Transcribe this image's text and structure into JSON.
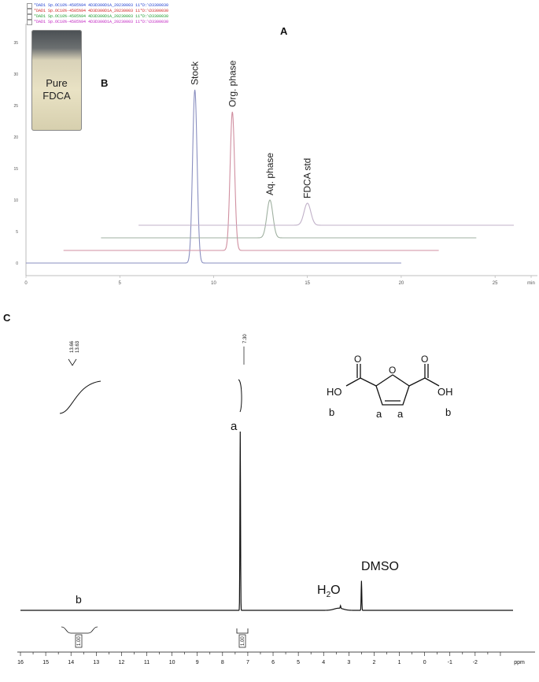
{
  "chart_data": [
    {
      "panel": "A",
      "type": "line",
      "panel_label": "A",
      "inset_label": "B",
      "inset_photo_text": [
        "Pure",
        "FDCA"
      ],
      "legend": [
        {
          "text": "*DAD1 Sp.OC10%-4505%94 4D3D300D1A_20230003 11*D:\\D3300030",
          "color": "#1f3fd0"
        },
        {
          "text": "*DAD1 Sp.OC10%-4505%94 4D3D300D1A_20230003 11*D:\\D3300030",
          "color": "#d02020"
        },
        {
          "text": "*DAD1 Sp.OC10%-4505%94 4D3D300D1A_20230003 11*D:\\D3300030",
          "color": "#1a9a2a"
        },
        {
          "text": "*DAD1 Sp.OC10%-4505%94 4D3D300D1A_20230003 11*D:\\D3300030",
          "color": "#c020c0"
        }
      ],
      "x_ticks": [
        "0",
        "5",
        "10",
        "15",
        "20",
        "25",
        "min"
      ],
      "y_ticks": [
        "0",
        "5",
        "10",
        "15",
        "20",
        "25",
        "30",
        "35"
      ],
      "series": [
        {
          "name": "Stock",
          "color": "#8a8fc0",
          "offset": 0,
          "x_start": 0,
          "x_end": 20,
          "peak_x": 9.0,
          "peak_y": 27.5,
          "sigma": 0.12
        },
        {
          "name": "Org. phase",
          "color": "#d08fa0",
          "offset": 2,
          "x_start": 2,
          "x_end": 22,
          "peak_x": 11.0,
          "peak_y": 22,
          "sigma": 0.12
        },
        {
          "name": "Aq. phase",
          "color": "#9fb0a0",
          "offset": 4,
          "x_start": 4,
          "x_end": 24,
          "peak_x": 13.0,
          "peak_y": 6,
          "sigma": 0.16
        },
        {
          "name": "FDCA std",
          "color": "#c0b0c8",
          "offset": 6,
          "x_start": 6,
          "x_end": 26,
          "peak_x": 15.0,
          "peak_y": 3.5,
          "sigma": 0.18
        }
      ],
      "xlim": [
        0,
        26
      ],
      "ylim": [
        0,
        38
      ]
    },
    {
      "panel": "C",
      "type": "line",
      "panel_label": "C",
      "x_ticks": [
        "16",
        "15",
        "14",
        "13",
        "12",
        "11",
        "10",
        "9",
        "8",
        "7",
        "6",
        "5",
        "4",
        "3",
        "2",
        "1",
        "0",
        "-1",
        "-2",
        "ppm"
      ],
      "xlim": [
        16,
        -3.5
      ],
      "peaks": [
        {
          "label": "a",
          "ppm": 7.3,
          "height": 1.0
        },
        {
          "label": "DMSO",
          "ppm": 2.5,
          "height": 0.165
        },
        {
          "label": "H2O",
          "ppm": 3.33,
          "height": 0.015
        },
        {
          "label": "b",
          "ppm": 13.6,
          "height": 0.0
        }
      ],
      "peak_pick_top": [
        "13.66",
        "13.63"
      ],
      "peak_pick_mid": "7.30",
      "integrals": [
        "1.00",
        "1.00"
      ],
      "labels": {
        "a": "a",
        "b": "b",
        "dmso": "DMSO",
        "h2o_h": "H",
        "h2o_sub": "2",
        "h2o_o": "O"
      },
      "structure": {
        "left": "HO",
        "right": "OH",
        "o_ring": "O",
        "labels": [
          "b",
          "a",
          "a",
          "b"
        ],
        "carbonyl_o": "O"
      }
    }
  ]
}
